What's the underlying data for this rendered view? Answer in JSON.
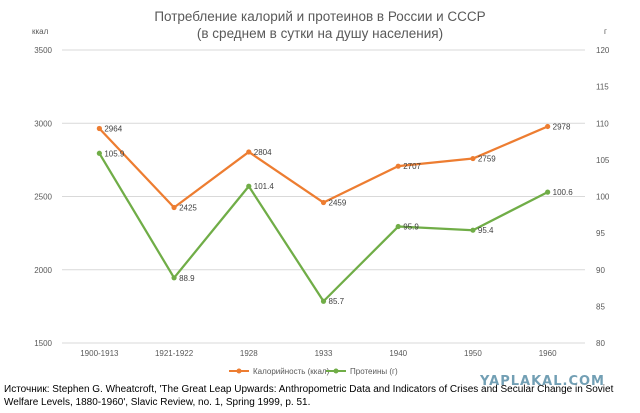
{
  "chart_data": {
    "type": "line",
    "title": "Потребление калорий и протеинов в России и СССР",
    "subtitle": "(в среднем в сутки на душу населения)",
    "categories": [
      "1900-1913",
      "1921-1922",
      "1928",
      "1933",
      "1940",
      "1950",
      "1960"
    ],
    "y_left": {
      "unit": "ккал",
      "range": [
        1500,
        3500
      ],
      "ticks": [
        "1500",
        "2000",
        "2500",
        "3000",
        "3500"
      ]
    },
    "y_right": {
      "unit": "г",
      "range": [
        80,
        120
      ],
      "ticks": [
        "80",
        "85",
        "90",
        "95",
        "100",
        "105",
        "110",
        "115",
        "120"
      ]
    },
    "series": [
      {
        "name": "Калорийность (ккал)",
        "axis": "left",
        "color": "#ED7D31",
        "values": [
          2964,
          2425,
          2804,
          2459,
          2707,
          2759,
          2978
        ],
        "labels": [
          "2964",
          "2425",
          "2804",
          "2459",
          "2707",
          "2759",
          "2978"
        ]
      },
      {
        "name": "Протеины (г)",
        "axis": "right",
        "color": "#70AD47",
        "values": [
          105.9,
          88.9,
          101.4,
          85.7,
          95.9,
          95.4,
          100.6
        ],
        "labels": [
          "105.9",
          "88.9",
          "101.4",
          "85.7",
          "95.9",
          "95.4",
          "100.6"
        ]
      }
    ],
    "grid": "horizontal",
    "legend": "bottom-center"
  },
  "source": "Источник: Stephen G. Wheatcroft, 'The Great Leap Upwards: Anthropometric Data and Indicators of Crises and Secular Change in Soviet Welfare Levels, 1880-1960', Slavic Review, no. 1, Spring 1999, p. 51.",
  "watermark": "YAPLAKAL.COM"
}
